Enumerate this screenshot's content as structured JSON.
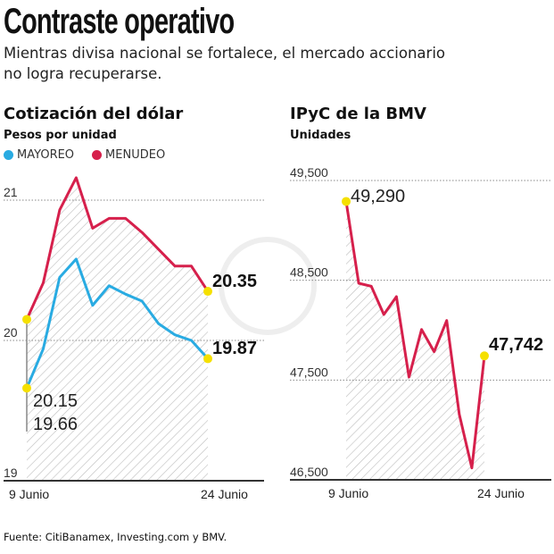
{
  "header": {
    "title": "Contraste operativo",
    "subtitle_line1": "Mientras divisa nacional se fortalece, el mercado accionario",
    "subtitle_line2": "no logra recuperarse."
  },
  "colors": {
    "mayoreo": "#29abe2",
    "menudeo": "#d6204c",
    "marker": "#f5e000",
    "hatch": "#bdbdbd"
  },
  "chart_data": [
    {
      "type": "line",
      "title": "Cotización del dólar",
      "ylabel": "Pesos por unidad",
      "ylim": [
        19,
        21.2
      ],
      "yticks": [
        {
          "v": 19,
          "label": "19"
        },
        {
          "v": 20,
          "label": "20"
        },
        {
          "v": 21,
          "label": "21"
        }
      ],
      "xtick_labels": [
        "9 Junio",
        "24 Junio"
      ],
      "legend": "top-left",
      "grid": true,
      "series": [
        {
          "name": "MAYOREO",
          "color": "#29abe2",
          "values": [
            19.66,
            19.94,
            20.45,
            20.58,
            20.25,
            20.39,
            20.33,
            20.28,
            20.12,
            20.04,
            20.0,
            19.87
          ]
        },
        {
          "name": "MENUDEO",
          "color": "#d6204c",
          "values": [
            20.15,
            20.41,
            20.93,
            21.16,
            20.8,
            20.87,
            20.87,
            20.77,
            20.65,
            20.53,
            20.53,
            20.35
          ]
        }
      ],
      "annotations": {
        "start_menudeo": "20.15",
        "start_mayoreo": "19.66",
        "end_menudeo": "20.35",
        "end_mayoreo": "19.87"
      }
    },
    {
      "type": "line",
      "title": "IPyC de la BMV",
      "ylabel": "Unidades",
      "ylim": [
        46500,
        49500
      ],
      "yticks": [
        {
          "v": 46500,
          "label": "46,500"
        },
        {
          "v": 47500,
          "label": "47,500"
        },
        {
          "v": 48500,
          "label": "48,500"
        },
        {
          "v": 49500,
          "label": "49,500"
        }
      ],
      "xtick_labels": [
        "9 Junio",
        "24 Junio"
      ],
      "grid": true,
      "series": [
        {
          "color": "#d6204c",
          "values": [
            49290,
            48470,
            48440,
            48157,
            48336,
            47530,
            48007,
            47784,
            48097,
            47157,
            46619,
            47742
          ]
        }
      ],
      "annotations": {
        "start": "49,290",
        "end": "47,742"
      }
    }
  ],
  "source": "Fuente: CitiBanamex, Investing.com y BMV."
}
